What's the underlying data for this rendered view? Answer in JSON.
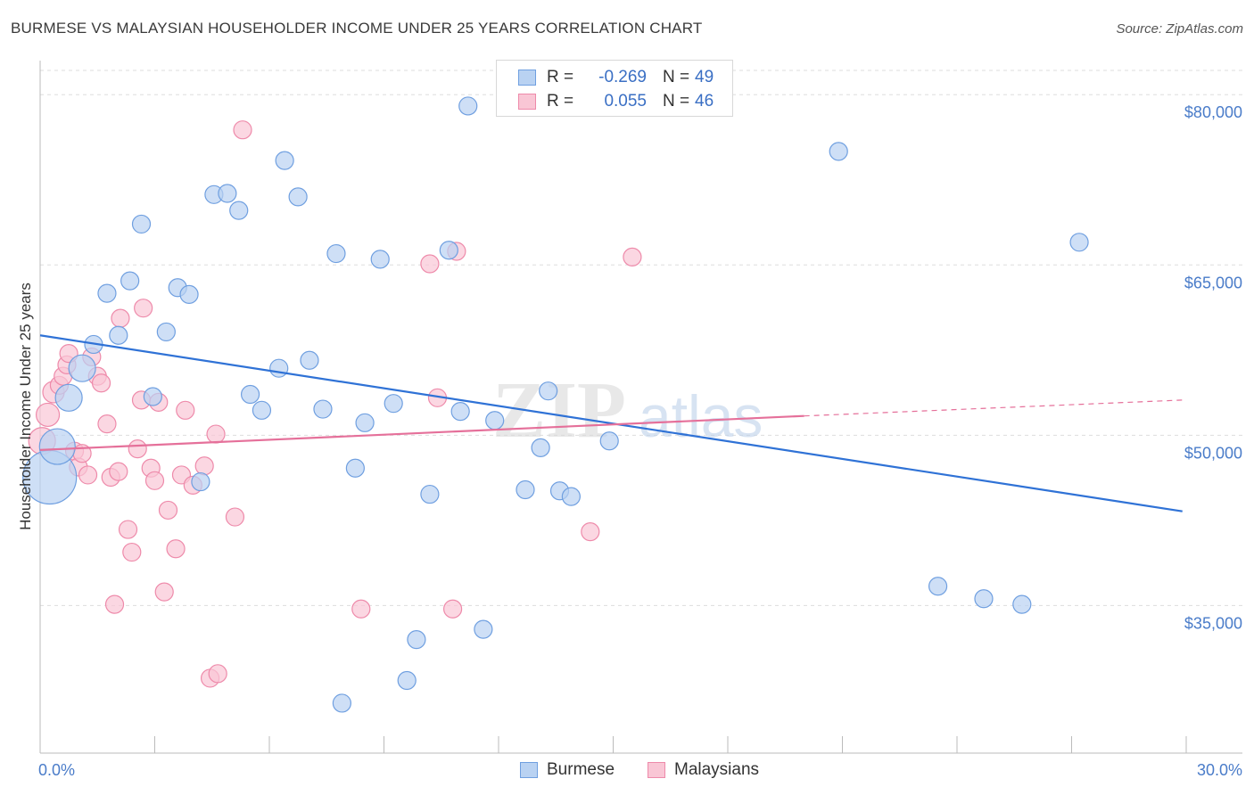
{
  "title": "BURMESE VS MALAYSIAN HOUSEHOLDER INCOME UNDER 25 YEARS CORRELATION CHART",
  "source": "Source: ZipAtlas.com",
  "watermark": {
    "zip": "ZIP",
    "atlas": "atlas"
  },
  "legend": {
    "burmese": {
      "r_label": "R =",
      "r_value": "-0.269",
      "n_label": "N =",
      "n_value": "49"
    },
    "malaysian": {
      "r_label": "R =",
      "r_value": "0.055",
      "n_label": "N =",
      "n_value": "46"
    }
  },
  "bottom_legend": {
    "burmese": "Burmese",
    "malaysian": "Malaysians"
  },
  "colors": {
    "burmese_fill": "#b9d2f2",
    "burmese_stroke": "#6f9fe0",
    "burmese_line": "#2f72d6",
    "malaysian_fill": "#f9c6d5",
    "malaysian_stroke": "#ee8aaa",
    "malaysian_line": "#e5709a",
    "tick_text": "#4a7cc9",
    "grid": "#dddddd"
  },
  "chart_data": {
    "type": "scatter",
    "title": "BURMESE VS MALAYSIAN HOUSEHOLDER INCOME UNDER 25 YEARS CORRELATION CHART",
    "xlabel": "",
    "ylabel": "Householder Income Under 25 years",
    "xlim": [
      0,
      30
    ],
    "ylim": [
      22000,
      83000
    ],
    "x_tick_labels": [
      "0.0%",
      "30.0%"
    ],
    "y_ticks": [
      35000,
      50000,
      65000,
      80000
    ],
    "y_tick_labels": [
      "$35,000",
      "$50,000",
      "$65,000",
      "$80,000"
    ],
    "grid": true,
    "legend_position": "top-center",
    "series": [
      {
        "name": "Burmese",
        "r": -0.269,
        "n": 49,
        "trend": {
          "x": [
            0.0,
            29.9
          ],
          "y": [
            58800,
            43300
          ]
        },
        "points": [
          {
            "x": 0.25,
            "y": 46300,
            "s": 3
          },
          {
            "x": 0.45,
            "y": 49000,
            "s": 2
          },
          {
            "x": 0.75,
            "y": 53300,
            "s": 1.5
          },
          {
            "x": 1.1,
            "y": 55900,
            "s": 1.5
          },
          {
            "x": 1.4,
            "y": 58000,
            "s": 1
          },
          {
            "x": 1.75,
            "y": 62500,
            "s": 1
          },
          {
            "x": 2.05,
            "y": 58800,
            "s": 1
          },
          {
            "x": 2.35,
            "y": 63600,
            "s": 1
          },
          {
            "x": 2.65,
            "y": 68600,
            "s": 1
          },
          {
            "x": 2.95,
            "y": 53400,
            "s": 1
          },
          {
            "x": 3.3,
            "y": 59100,
            "s": 1
          },
          {
            "x": 3.6,
            "y": 63000,
            "s": 1
          },
          {
            "x": 3.9,
            "y": 62400,
            "s": 1
          },
          {
            "x": 4.2,
            "y": 45900,
            "s": 1
          },
          {
            "x": 4.55,
            "y": 71200,
            "s": 1
          },
          {
            "x": 4.9,
            "y": 71300,
            "s": 1
          },
          {
            "x": 5.2,
            "y": 69800,
            "s": 1
          },
          {
            "x": 5.5,
            "y": 53600,
            "s": 1
          },
          {
            "x": 5.8,
            "y": 52200,
            "s": 1
          },
          {
            "x": 6.25,
            "y": 55900,
            "s": 1
          },
          {
            "x": 6.4,
            "y": 74200,
            "s": 1
          },
          {
            "x": 6.75,
            "y": 71000,
            "s": 1
          },
          {
            "x": 7.05,
            "y": 56600,
            "s": 1
          },
          {
            "x": 7.4,
            "y": 52300,
            "s": 1
          },
          {
            "x": 7.75,
            "y": 66000,
            "s": 1
          },
          {
            "x": 7.9,
            "y": 26400,
            "s": 1
          },
          {
            "x": 8.25,
            "y": 47100,
            "s": 1
          },
          {
            "x": 8.5,
            "y": 51100,
            "s": 1
          },
          {
            "x": 8.9,
            "y": 65500,
            "s": 1
          },
          {
            "x": 9.25,
            "y": 52800,
            "s": 1
          },
          {
            "x": 9.6,
            "y": 28400,
            "s": 1
          },
          {
            "x": 9.85,
            "y": 32000,
            "s": 1
          },
          {
            "x": 10.2,
            "y": 44800,
            "s": 1
          },
          {
            "x": 10.7,
            "y": 66300,
            "s": 1
          },
          {
            "x": 11.0,
            "y": 52100,
            "s": 1
          },
          {
            "x": 11.2,
            "y": 79000,
            "s": 1
          },
          {
            "x": 11.6,
            "y": 32900,
            "s": 1
          },
          {
            "x": 11.9,
            "y": 51300,
            "s": 1
          },
          {
            "x": 12.7,
            "y": 45200,
            "s": 1
          },
          {
            "x": 13.1,
            "y": 48900,
            "s": 1
          },
          {
            "x": 13.3,
            "y": 53900,
            "s": 1
          },
          {
            "x": 13.6,
            "y": 45100,
            "s": 1
          },
          {
            "x": 13.9,
            "y": 44600,
            "s": 1
          },
          {
            "x": 14.9,
            "y": 49500,
            "s": 1
          },
          {
            "x": 20.9,
            "y": 75000,
            "s": 1
          },
          {
            "x": 23.5,
            "y": 36700,
            "s": 1
          },
          {
            "x": 24.7,
            "y": 35600,
            "s": 1
          },
          {
            "x": 25.7,
            "y": 35100,
            "s": 1
          },
          {
            "x": 27.2,
            "y": 67000,
            "s": 1
          }
        ]
      },
      {
        "name": "Malaysians",
        "r": 0.055,
        "n": 46,
        "trend": {
          "x": [
            0.0,
            20.0
          ],
          "y": [
            48700,
            51700
          ]
        },
        "trend_dashed": {
          "x": [
            20.0,
            29.9
          ],
          "y": [
            51700,
            53100
          ]
        },
        "points": [
          {
            "x": 0.05,
            "y": 49500,
            "s": 1.5
          },
          {
            "x": 0.2,
            "y": 51800,
            "s": 1.3
          },
          {
            "x": 0.35,
            "y": 53800,
            "s": 1.2
          },
          {
            "x": 0.5,
            "y": 54400,
            "s": 1
          },
          {
            "x": 0.6,
            "y": 55200,
            "s": 1
          },
          {
            "x": 0.7,
            "y": 56200,
            "s": 1
          },
          {
            "x": 0.75,
            "y": 57200,
            "s": 1
          },
          {
            "x": 0.9,
            "y": 48600,
            "s": 1
          },
          {
            "x": 1.0,
            "y": 47200,
            "s": 1
          },
          {
            "x": 1.1,
            "y": 48400,
            "s": 1
          },
          {
            "x": 1.25,
            "y": 46500,
            "s": 1
          },
          {
            "x": 1.35,
            "y": 56900,
            "s": 1
          },
          {
            "x": 1.5,
            "y": 55200,
            "s": 1
          },
          {
            "x": 1.6,
            "y": 54600,
            "s": 1
          },
          {
            "x": 1.75,
            "y": 51000,
            "s": 1
          },
          {
            "x": 1.85,
            "y": 46300,
            "s": 1
          },
          {
            "x": 1.95,
            "y": 35100,
            "s": 1
          },
          {
            "x": 2.05,
            "y": 46800,
            "s": 1
          },
          {
            "x": 2.1,
            "y": 60300,
            "s": 1
          },
          {
            "x": 2.3,
            "y": 41700,
            "s": 1
          },
          {
            "x": 2.4,
            "y": 39700,
            "s": 1
          },
          {
            "x": 2.55,
            "y": 48800,
            "s": 1
          },
          {
            "x": 2.65,
            "y": 53100,
            "s": 1
          },
          {
            "x": 2.7,
            "y": 61200,
            "s": 1
          },
          {
            "x": 2.9,
            "y": 47100,
            "s": 1
          },
          {
            "x": 3.0,
            "y": 46000,
            "s": 1
          },
          {
            "x": 3.1,
            "y": 52900,
            "s": 1
          },
          {
            "x": 3.25,
            "y": 36200,
            "s": 1
          },
          {
            "x": 3.35,
            "y": 43400,
            "s": 1
          },
          {
            "x": 3.55,
            "y": 40000,
            "s": 1
          },
          {
            "x": 3.7,
            "y": 46500,
            "s": 1
          },
          {
            "x": 3.8,
            "y": 52200,
            "s": 1
          },
          {
            "x": 4.0,
            "y": 45600,
            "s": 1
          },
          {
            "x": 4.3,
            "y": 47300,
            "s": 1
          },
          {
            "x": 4.45,
            "y": 28600,
            "s": 1
          },
          {
            "x": 4.65,
            "y": 29000,
            "s": 1
          },
          {
            "x": 4.6,
            "y": 50100,
            "s": 1
          },
          {
            "x": 5.1,
            "y": 42800,
            "s": 1
          },
          {
            "x": 5.3,
            "y": 76900,
            "s": 1
          },
          {
            "x": 8.4,
            "y": 34700,
            "s": 1
          },
          {
            "x": 10.2,
            "y": 65100,
            "s": 1
          },
          {
            "x": 10.4,
            "y": 53300,
            "s": 1
          },
          {
            "x": 10.8,
            "y": 34700,
            "s": 1
          },
          {
            "x": 10.9,
            "y": 66200,
            "s": 1
          },
          {
            "x": 14.4,
            "y": 41500,
            "s": 1
          },
          {
            "x": 15.5,
            "y": 65700,
            "s": 1
          }
        ]
      }
    ]
  }
}
